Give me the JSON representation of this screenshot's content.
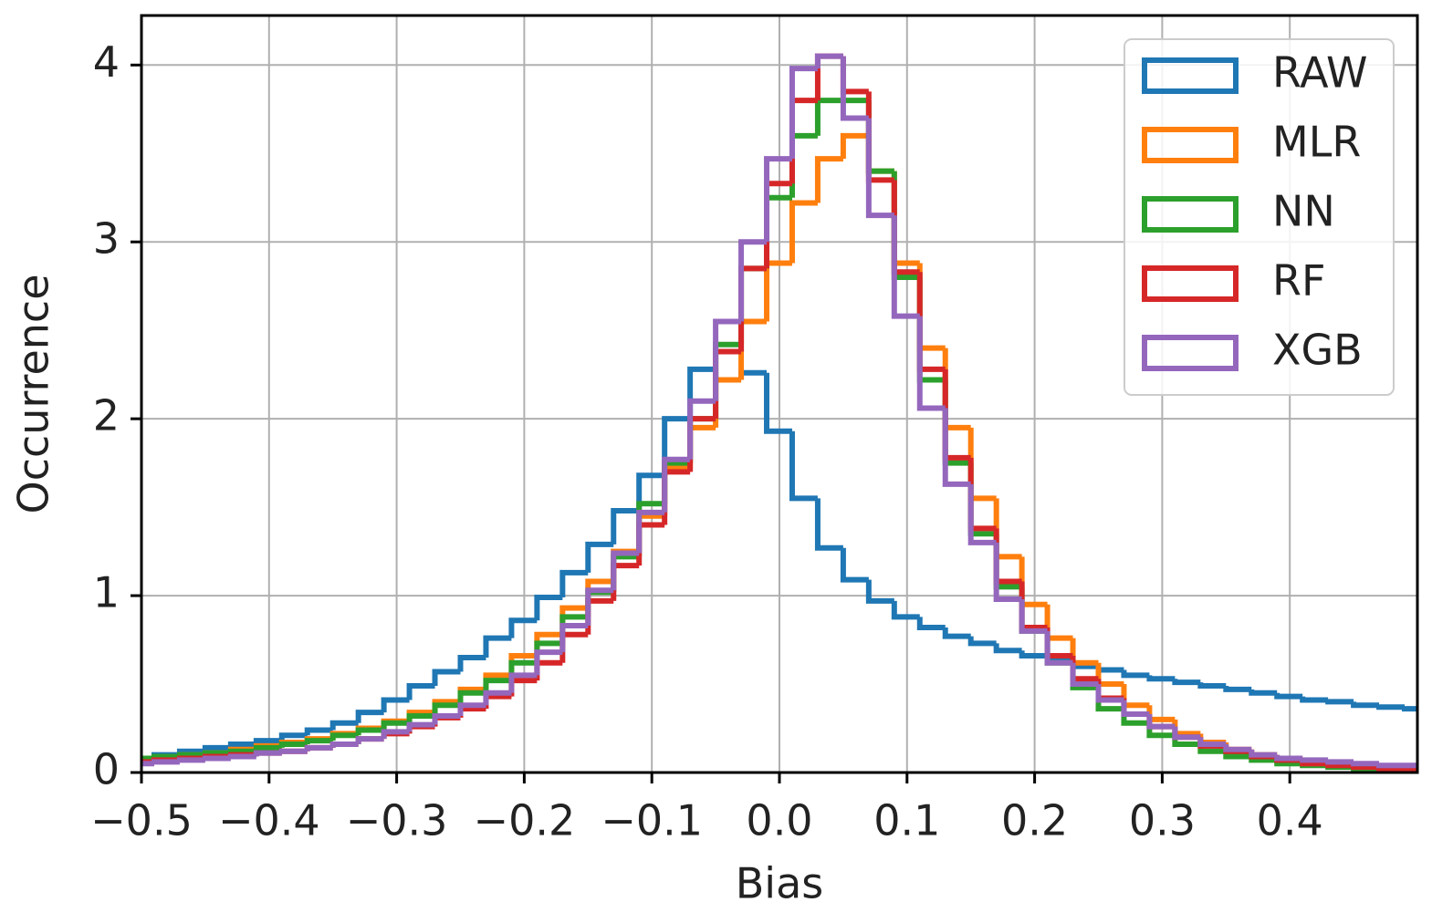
{
  "chart_data": {
    "type": "histogram",
    "x_label": "Bias",
    "y_label": "Occurrence",
    "bins": [
      -0.51,
      -0.49,
      -0.47,
      -0.45,
      -0.43,
      -0.41,
      -0.39,
      -0.37,
      -0.35,
      -0.33,
      -0.31,
      -0.29,
      -0.27,
      -0.25,
      -0.23,
      -0.21,
      -0.19,
      -0.17,
      -0.15,
      -0.13,
      -0.11,
      -0.09,
      -0.07,
      -0.05,
      -0.03,
      -0.01,
      0.01,
      0.03,
      0.05,
      0.07,
      0.09,
      0.11,
      0.13,
      0.15,
      0.17,
      0.19,
      0.21,
      0.23,
      0.25,
      0.27,
      0.29,
      0.31,
      0.33,
      0.35,
      0.37,
      0.39,
      0.41,
      0.43,
      0.45,
      0.47,
      0.49,
      0.51
    ],
    "series": [
      {
        "name": "RAW",
        "color": "#1f77b4",
        "values": [
          0.08,
          0.1,
          0.12,
          0.14,
          0.16,
          0.18,
          0.21,
          0.24,
          0.28,
          0.34,
          0.41,
          0.49,
          0.57,
          0.65,
          0.76,
          0.86,
          0.99,
          1.13,
          1.29,
          1.48,
          1.68,
          2.0,
          2.28,
          2.22,
          2.26,
          1.93,
          1.55,
          1.27,
          1.09,
          0.97,
          0.88,
          0.82,
          0.77,
          0.73,
          0.69,
          0.66,
          0.63,
          0.6,
          0.58,
          0.55,
          0.53,
          0.51,
          0.49,
          0.47,
          0.45,
          0.43,
          0.41,
          0.4,
          0.38,
          0.37,
          0.36
        ]
      },
      {
        "name": "MLR",
        "color": "#ff7f0e",
        "values": [
          0.08,
          0.09,
          0.1,
          0.11,
          0.13,
          0.15,
          0.17,
          0.19,
          0.22,
          0.25,
          0.29,
          0.34,
          0.4,
          0.47,
          0.55,
          0.66,
          0.78,
          0.93,
          1.08,
          1.25,
          1.45,
          1.72,
          1.95,
          2.22,
          2.55,
          2.88,
          3.22,
          3.47,
          3.6,
          3.4,
          2.88,
          2.4,
          1.95,
          1.55,
          1.22,
          0.95,
          0.76,
          0.62,
          0.5,
          0.38,
          0.3,
          0.22,
          0.17,
          0.13,
          0.1,
          0.08,
          0.06,
          0.05,
          0.04,
          0.03,
          0.03
        ]
      },
      {
        "name": "NN",
        "color": "#2ca02c",
        "values": [
          0.08,
          0.09,
          0.1,
          0.11,
          0.12,
          0.14,
          0.16,
          0.18,
          0.21,
          0.24,
          0.28,
          0.32,
          0.38,
          0.45,
          0.52,
          0.62,
          0.73,
          0.88,
          1.02,
          1.22,
          1.52,
          1.75,
          2.0,
          2.42,
          2.85,
          3.25,
          3.6,
          3.8,
          3.8,
          3.4,
          2.8,
          2.22,
          1.75,
          1.35,
          1.05,
          0.8,
          0.62,
          0.48,
          0.36,
          0.28,
          0.21,
          0.16,
          0.12,
          0.09,
          0.07,
          0.05,
          0.04,
          0.03,
          0.02,
          0.02,
          0.01
        ]
      },
      {
        "name": "RF",
        "color": "#d62728",
        "values": [
          0.06,
          0.07,
          0.08,
          0.09,
          0.1,
          0.11,
          0.12,
          0.14,
          0.16,
          0.19,
          0.22,
          0.26,
          0.31,
          0.36,
          0.43,
          0.52,
          0.62,
          0.78,
          0.97,
          1.17,
          1.4,
          1.7,
          2.0,
          2.38,
          2.85,
          3.33,
          3.8,
          4.05,
          3.85,
          3.35,
          2.83,
          2.28,
          1.78,
          1.38,
          1.08,
          0.82,
          0.66,
          0.53,
          0.42,
          0.33,
          0.26,
          0.2,
          0.15,
          0.12,
          0.09,
          0.07,
          0.05,
          0.04,
          0.03,
          0.02,
          0.02
        ]
      },
      {
        "name": "XGB",
        "color": "#9467bd",
        "values": [
          0.05,
          0.06,
          0.07,
          0.08,
          0.09,
          0.11,
          0.12,
          0.14,
          0.16,
          0.19,
          0.23,
          0.27,
          0.32,
          0.38,
          0.45,
          0.55,
          0.68,
          0.83,
          1.03,
          1.24,
          1.47,
          1.77,
          2.1,
          2.55,
          3.0,
          3.47,
          3.98,
          4.05,
          3.7,
          3.15,
          2.58,
          2.06,
          1.63,
          1.3,
          0.98,
          0.8,
          0.62,
          0.5,
          0.41,
          0.33,
          0.26,
          0.2,
          0.16,
          0.13,
          0.1,
          0.08,
          0.07,
          0.06,
          0.05,
          0.04,
          0.04
        ]
      }
    ],
    "xlim": [
      -0.5,
      0.5
    ],
    "xticks": [
      {
        "value": -0.5,
        "label": "−0.5"
      },
      {
        "value": -0.4,
        "label": "−0.4"
      },
      {
        "value": -0.3,
        "label": "−0.3"
      },
      {
        "value": -0.2,
        "label": "−0.2"
      },
      {
        "value": -0.1,
        "label": "−0.1"
      },
      {
        "value": 0,
        "label": "0.0"
      },
      0.1,
      0.2,
      0.3,
      0.4
    ],
    "ylim": [
      0,
      4.28
    ],
    "yticks": [
      0,
      1,
      2,
      3,
      4
    ],
    "grid": true,
    "legend": "upper right"
  }
}
